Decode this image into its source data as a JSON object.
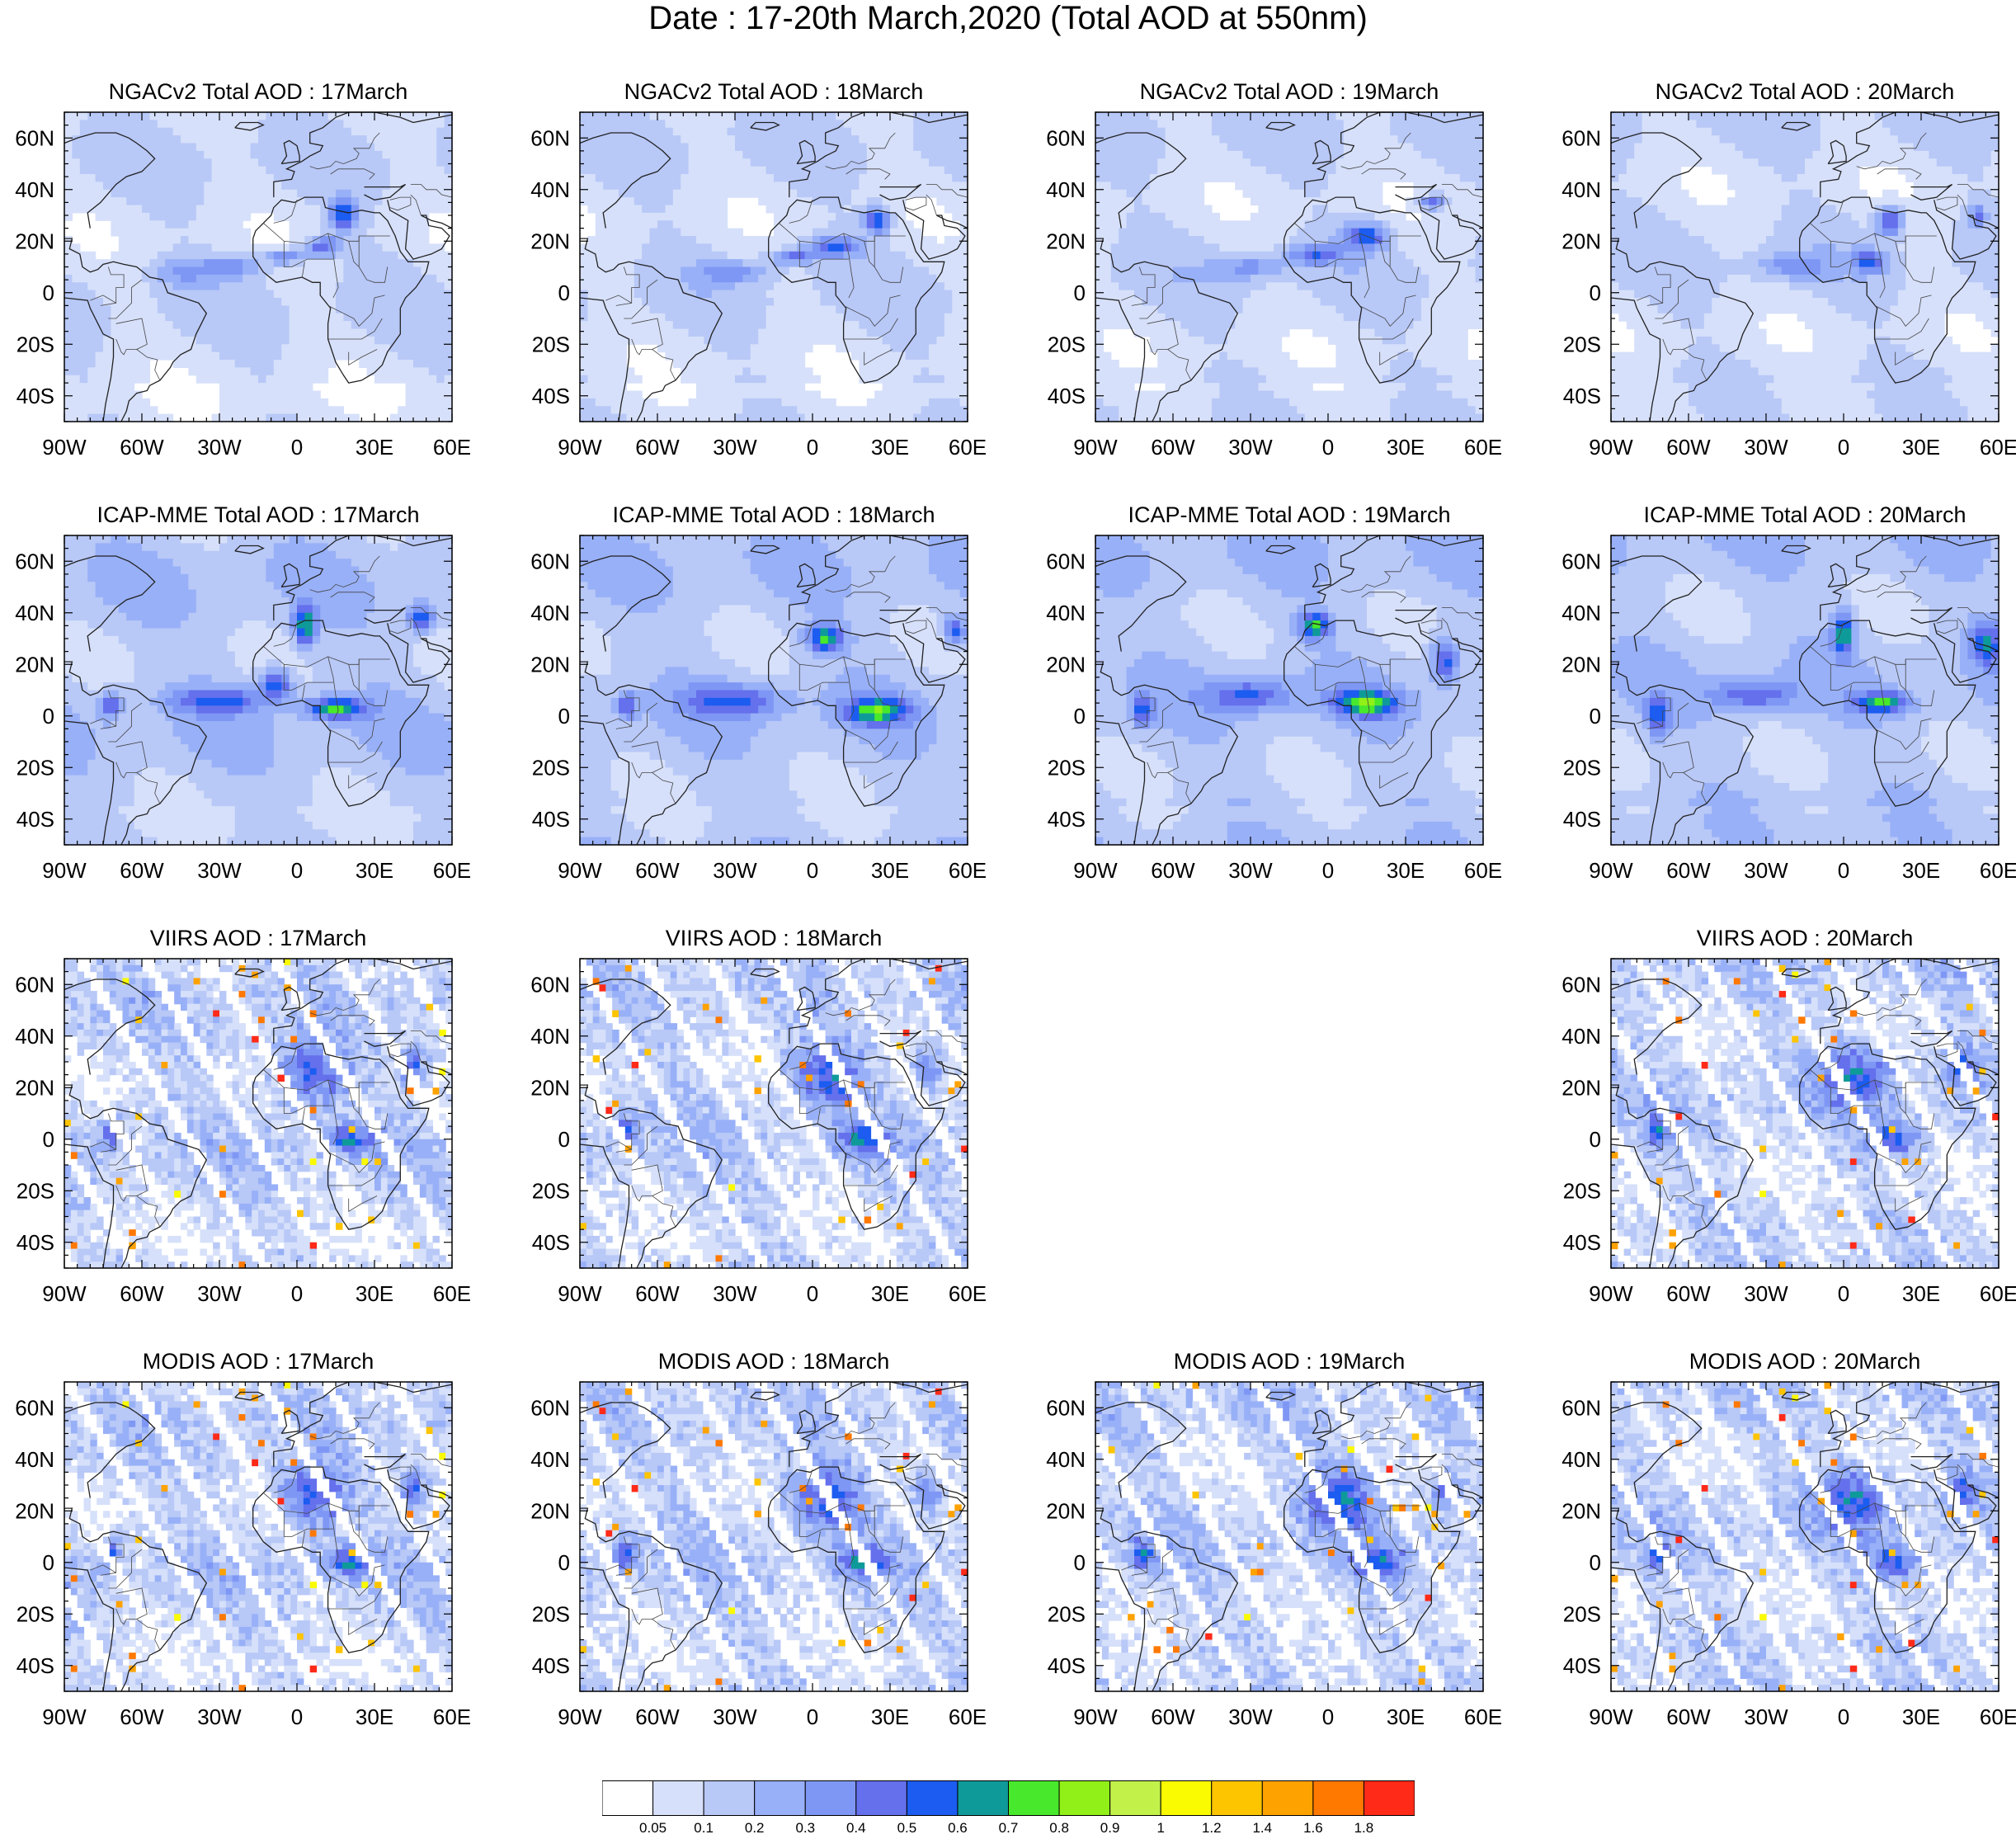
{
  "title": "Date : 17-20th March,2020 (Total AOD at 550nm)",
  "panels": [
    {
      "title": "NGACv2 Total AOD : 17March",
      "model": "NGACv2",
      "day": 17,
      "available": true
    },
    {
      "title": "NGACv2 Total AOD : 18March",
      "model": "NGACv2",
      "day": 18,
      "available": true
    },
    {
      "title": "NGACv2 Total AOD : 19March",
      "model": "NGACv2",
      "day": 19,
      "available": true
    },
    {
      "title": "NGACv2 Total AOD : 20March",
      "model": "NGACv2",
      "day": 20,
      "available": true
    },
    {
      "title": "ICAP-MME Total AOD : 17March",
      "model": "ICAP-MME",
      "day": 17,
      "available": true
    },
    {
      "title": "ICAP-MME Total AOD : 18March",
      "model": "ICAP-MME",
      "day": 18,
      "available": true
    },
    {
      "title": "ICAP-MME Total AOD : 19March",
      "model": "ICAP-MME",
      "day": 19,
      "available": true
    },
    {
      "title": "ICAP-MME Total AOD : 20March",
      "model": "ICAP-MME",
      "day": 20,
      "available": true
    },
    {
      "title": "VIIRS AOD : 17March",
      "model": "VIIRS",
      "day": 17,
      "available": true
    },
    {
      "title": "VIIRS AOD : 18March",
      "model": "VIIRS",
      "day": 18,
      "available": true
    },
    {
      "title": "",
      "model": "VIIRS",
      "day": 19,
      "available": false
    },
    {
      "title": "VIIRS AOD : 20March",
      "model": "VIIRS",
      "day": 20,
      "available": true
    },
    {
      "title": "MODIS AOD : 17March",
      "model": "MODIS",
      "day": 17,
      "available": true
    },
    {
      "title": "MODIS AOD : 18March",
      "model": "MODIS",
      "day": 18,
      "available": true
    },
    {
      "title": "MODIS AOD : 19March",
      "model": "MODIS",
      "day": 19,
      "available": true
    },
    {
      "title": "MODIS AOD : 20March",
      "model": "MODIS",
      "day": 20,
      "available": true
    }
  ],
  "map": {
    "lon_range": [
      -90,
      60
    ],
    "lat_range": [
      -50,
      70
    ],
    "lon_ticks": [
      {
        "value": -90,
        "label": "90W"
      },
      {
        "value": -60,
        "label": "60W"
      },
      {
        "value": -30,
        "label": "30W"
      },
      {
        "value": 0,
        "label": "0"
      },
      {
        "value": 30,
        "label": "30E"
      },
      {
        "value": 60,
        "label": "60E"
      }
    ],
    "lat_ticks": [
      {
        "value": 60,
        "label": "60N"
      },
      {
        "value": 40,
        "label": "40N"
      },
      {
        "value": 20,
        "label": "20N"
      },
      {
        "value": 0,
        "label": "0"
      },
      {
        "value": -20,
        "label": "20S"
      },
      {
        "value": -40,
        "label": "40S"
      }
    ]
  },
  "colorbar": {
    "colors": [
      "#ffffff",
      "#d6e0fa",
      "#b8c8f7",
      "#98b0f7",
      "#7f97f4",
      "#6470ec",
      "#1c5cf0",
      "#0f9a9a",
      "#48e82c",
      "#90f017",
      "#c2f24a",
      "#fafa00",
      "#fdc400",
      "#fea200",
      "#ff7800",
      "#ff2a18"
    ],
    "labels": [
      "0.05",
      "0.1",
      "0.2",
      "0.3",
      "0.4",
      "0.5",
      "0.6",
      "0.7",
      "0.8",
      "0.9",
      "1",
      "1.2",
      "1.4",
      "1.6",
      "1.8"
    ]
  }
}
